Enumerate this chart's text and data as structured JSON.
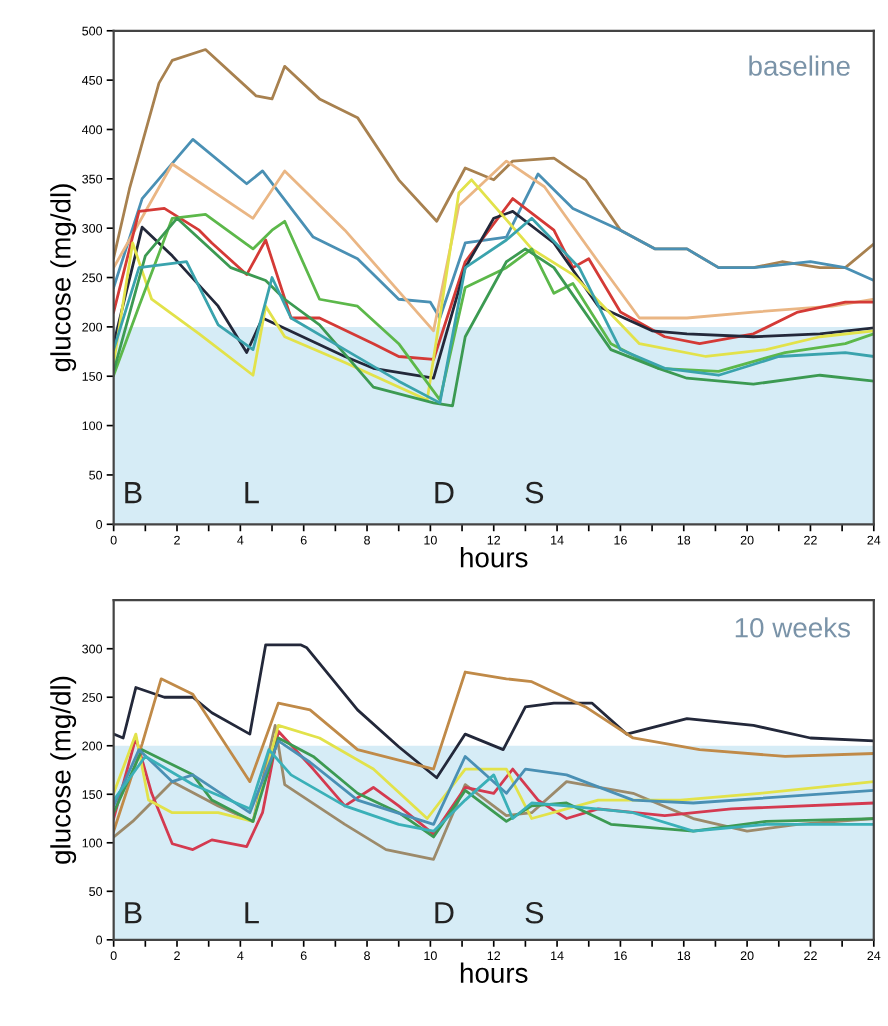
{
  "chart_data": [
    {
      "type": "line",
      "title": "baseline",
      "xlabel": "hours",
      "ylabel": "glucose (mg/dl)",
      "xlim": [
        0,
        24
      ],
      "ylim": [
        0,
        500
      ],
      "xticks": [
        0,
        {
          "value": 1,
          "label": null
        },
        2,
        {
          "value": 3,
          "label": null
        },
        4,
        {
          "value": 5,
          "label": null
        },
        6,
        {
          "value": 7,
          "label": null
        },
        8,
        {
          "value": 9,
          "label": null
        },
        10,
        {
          "value": 11,
          "label": null
        },
        12,
        {
          "value": 13,
          "label": null
        },
        14,
        {
          "value": 15,
          "label": null
        },
        16,
        {
          "value": 17,
          "label": null
        },
        18,
        {
          "value": 19,
          "label": null
        },
        20,
        {
          "value": 21,
          "label": null
        },
        22,
        {
          "value": 23,
          "label": null
        },
        24
      ],
      "yticks": [
        0,
        50,
        100,
        150,
        200,
        250,
        300,
        350,
        400,
        450,
        500
      ],
      "grid": false,
      "legend": false,
      "marker": "none",
      "line_style": "solid",
      "bands": [
        {
          "axis": "y",
          "from": 0,
          "to": 200,
          "color": "#d6ecf6"
        }
      ],
      "annotations": [
        "B",
        "L",
        "D",
        "S"
      ],
      "series": [
        {
          "color": "#a8814f",
          "x": [
            0,
            0.5,
            1.43,
            1.85,
            2.9,
            4.5,
            5.0,
            5.4,
            6.5,
            7.7,
            9.0,
            10.2,
            11.1,
            12.0,
            12.6,
            13.9,
            14.9,
            16,
            17.1,
            18.1,
            19.1,
            20.2,
            21.1,
            22.3,
            23.1,
            24
          ],
          "values": [
            270,
            340,
            447,
            470,
            481,
            434,
            431,
            464,
            431,
            412,
            349,
            307,
            361,
            349,
            368,
            371,
            349,
            298,
            279,
            279,
            260,
            260,
            266,
            260,
            260,
            284
          ]
        },
        {
          "color": "#4a90b4",
          "x": [
            0,
            0.9,
            2.5,
            4.2,
            4.7,
            6.3,
            7.7,
            9,
            10,
            10.3,
            11.1,
            12.4,
            13.4,
            14.5,
            16,
            17.1,
            18.1,
            19.1,
            20.2,
            22,
            23.1,
            24
          ],
          "values": [
            240,
            330,
            390,
            345,
            358,
            291,
            269,
            228,
            225,
            209,
            285,
            291,
            355,
            320,
            298,
            279,
            279,
            260,
            260,
            266,
            260,
            247
          ]
        },
        {
          "color": "#eab684",
          "x": [
            0,
            1.85,
            4.4,
            5.4,
            7.3,
            10.1,
            10.9,
            12.4,
            13.6,
            15.3,
            16.6,
            18.1,
            20.2,
            22.7,
            24
          ],
          "values": [
            260,
            365,
            310,
            358,
            298,
            196,
            323,
            368,
            342,
            266,
            209,
            209,
            215,
            221,
            228
          ]
        },
        {
          "color": "#d43a36",
          "x": [
            0,
            0.8,
            1.6,
            2.7,
            3.1,
            4.2,
            4.8,
            5.6,
            6.5,
            8.2,
            9,
            10.1,
            11.1,
            12.6,
            13.9,
            14.5,
            15,
            16,
            17.4,
            18.5,
            20.2,
            21.6,
            23.1,
            24
          ],
          "values": [
            215,
            317,
            320,
            298,
            285,
            253,
            288,
            209,
            209,
            183,
            170,
            167,
            266,
            330,
            298,
            260,
            269,
            215,
            190,
            183,
            193,
            215,
            225,
            225
          ]
        },
        {
          "color": "#23283a",
          "x": [
            0,
            0.9,
            1.85,
            3.3,
            4.2,
            4.7,
            7.3,
            8.2,
            10.1,
            11.1,
            12,
            12.6,
            13.9,
            15.3,
            17,
            18.1,
            20.2,
            22.3,
            24
          ],
          "values": [
            183,
            301,
            272,
            221,
            174,
            209,
            170,
            158,
            148,
            260,
            310,
            317,
            285,
            221,
            196,
            193,
            190,
            193,
            199
          ]
        },
        {
          "color": "#e2e24a",
          "x": [
            0,
            0.6,
            1.2,
            2.7,
            4.4,
            4.8,
            5.4,
            7.3,
            9.9,
            10.9,
            11.3,
            13.2,
            14.5,
            16.6,
            18.7,
            20.6,
            22.3,
            24
          ],
          "values": [
            164,
            285,
            228,
            193,
            151,
            221,
            190,
            164,
            126,
            336,
            349,
            279,
            253,
            183,
            170,
            177,
            190,
            196
          ]
        },
        {
          "color": "#5cb84a",
          "x": [
            0,
            0.8,
            1.85,
            2.9,
            4.4,
            5.0,
            5.4,
            6.5,
            7.7,
            9,
            10.3,
            11.1,
            12.4,
            13.2,
            13.9,
            14.5,
            15.7,
            17.2,
            19.1,
            21.2,
            23.1,
            24
          ],
          "values": [
            151,
            221,
            310,
            314,
            279,
            298,
            307,
            228,
            221,
            183,
            126,
            240,
            260,
            279,
            234,
            244,
            183,
            158,
            155,
            174,
            183,
            193
          ]
        },
        {
          "color": "#3c9a52",
          "x": [
            0,
            1,
            2,
            3.7,
            4.8,
            5.4,
            6.5,
            8.2,
            10.1,
            10.7,
            11.1,
            12.4,
            13,
            13.9,
            15.7,
            17.2,
            18.1,
            20.2,
            22.3,
            24
          ],
          "values": [
            155,
            272,
            310,
            260,
            247,
            228,
            202,
            139,
            123,
            120,
            190,
            266,
            279,
            260,
            177,
            158,
            148,
            142,
            151,
            145
          ]
        },
        {
          "color": "#3aa3ad",
          "x": [
            0,
            0.8,
            2.3,
            3.3,
            4.4,
            5,
            5.6,
            7.3,
            9,
            10.3,
            11.1,
            12.4,
            13.2,
            14.7,
            16,
            17.4,
            19.1,
            21,
            23.1,
            24
          ],
          "values": [
            177,
            260,
            266,
            202,
            177,
            250,
            209,
            177,
            145,
            123,
            260,
            288,
            310,
            260,
            177,
            158,
            151,
            170,
            174,
            170
          ]
        }
      ]
    },
    {
      "type": "line",
      "title": "10 weeks",
      "xlabel": "hours",
      "ylabel": "glucose (mg/dl)",
      "xlim": [
        0,
        24
      ],
      "ylim": [
        0,
        350
      ],
      "xticks": [
        0,
        {
          "value": 1,
          "label": null
        },
        2,
        {
          "value": 3,
          "label": null
        },
        4,
        {
          "value": 5,
          "label": null
        },
        6,
        {
          "value": 7,
          "label": null
        },
        8,
        {
          "value": 9,
          "label": null
        },
        10,
        {
          "value": 11,
          "label": null
        },
        12,
        {
          "value": 13,
          "label": null
        },
        14,
        {
          "value": 15,
          "label": null
        },
        16,
        {
          "value": 17,
          "label": null
        },
        18,
        {
          "value": 19,
          "label": null
        },
        20,
        {
          "value": 21,
          "label": null
        },
        22,
        {
          "value": 23,
          "label": null
        },
        24
      ],
      "yticks": [
        0,
        50,
        100,
        150,
        200,
        250,
        300
      ],
      "grid": false,
      "legend": false,
      "marker": "none",
      "line_style": "solid",
      "bands": [
        {
          "axis": "y",
          "from": 0,
          "to": 200,
          "color": "#d6ecf6"
        }
      ],
      "annotations": [
        "B",
        "L",
        "D",
        "S"
      ],
      "series": [
        {
          "color": "#23283a",
          "x": [
            0,
            0.3,
            0.7,
            1.6,
            2.5,
            3.1,
            4.3,
            4.8,
            5.9,
            6.1,
            7.7,
            9,
            10.2,
            11.1,
            12.3,
            13,
            13.9,
            15.1,
            16.2,
            18.1,
            20.2,
            22,
            24
          ],
          "values": [
            212,
            208,
            260,
            250,
            250,
            234,
            212,
            304,
            304,
            301,
            237,
            199,
            167,
            212,
            196,
            240,
            244,
            244,
            212,
            228,
            221,
            208,
            205
          ]
        },
        {
          "color": "#c08a48",
          "x": [
            0,
            0.9,
            1.5,
            2.5,
            4.3,
            5.2,
            6.2,
            7.7,
            10.1,
            11.1,
            12.4,
            13.2,
            14.9,
            16.4,
            18.5,
            21.2,
            24
          ],
          "values": [
            112,
            202,
            269,
            253,
            163,
            244,
            237,
            196,
            176,
            276,
            269,
            266,
            240,
            208,
            196,
            189,
            192
          ]
        },
        {
          "color": "#9c8a6a",
          "x": [
            0,
            0.6,
            1.85,
            3.3,
            4.4,
            5.1,
            5.4,
            7.3,
            8.6,
            10.1,
            11.1,
            12.4,
            13.2,
            14.3,
            16.4,
            18.3,
            20,
            21.6,
            24
          ],
          "values": [
            106,
            122,
            163,
            138,
            122,
            221,
            160,
            119,
            93,
            83,
            160,
            128,
            131,
            163,
            151,
            125,
            112,
            119,
            125
          ]
        },
        {
          "color": "#d43a50",
          "x": [
            0,
            0.7,
            1.2,
            1.85,
            2.5,
            3.1,
            4.2,
            4.7,
            5.2,
            6.3,
            7.3,
            8.2,
            9,
            10.1,
            11.1,
            12,
            12.6,
            13.4,
            14.3,
            15.3,
            17.4,
            19.5,
            24
          ],
          "values": [
            125,
            208,
            151,
            99,
            93,
            103,
            96,
            131,
            215,
            176,
            138,
            157,
            138,
            109,
            157,
            151,
            176,
            144,
            125,
            135,
            128,
            135,
            141
          ]
        },
        {
          "color": "#e2e24a",
          "x": [
            0,
            0.7,
            1.1,
            1.85,
            3.3,
            4.4,
            5.2,
            6.5,
            8.2,
            9.9,
            11.1,
            12.4,
            13.2,
            15.3,
            17.9,
            20.4,
            24
          ],
          "values": [
            151,
            212,
            144,
            131,
            131,
            122,
            221,
            208,
            176,
            125,
            176,
            176,
            125,
            144,
            144,
            151,
            163
          ]
        },
        {
          "color": "#3c9a52",
          "x": [
            0,
            0.9,
            2.5,
            3.1,
            4.4,
            5.2,
            6.3,
            7.7,
            9,
            10.1,
            11.1,
            12.4,
            13.2,
            14.3,
            15.7,
            18.3,
            20.6,
            24
          ],
          "values": [
            131,
            196,
            170,
            144,
            122,
            208,
            189,
            151,
            131,
            106,
            154,
            122,
            138,
            141,
            119,
            112,
            122,
            125
          ]
        },
        {
          "color": "#4a90b4",
          "x": [
            0,
            0.8,
            1.85,
            2.5,
            4.3,
            5.2,
            6.2,
            7.7,
            10.1,
            11.1,
            12.4,
            13,
            14.3,
            16.4,
            18.3,
            24
          ],
          "values": [
            138,
            196,
            163,
            170,
            131,
            205,
            183,
            144,
            119,
            189,
            151,
            176,
            170,
            144,
            141,
            154
          ]
        },
        {
          "color": "#3ab0b8",
          "x": [
            0,
            1,
            2.5,
            4.3,
            4.9,
            5.6,
            7.3,
            9,
            10.1,
            11.1,
            12,
            12.6,
            13.2,
            14.3,
            16.4,
            18.3,
            20.6,
            24
          ],
          "values": [
            144,
            189,
            160,
            135,
            196,
            170,
            138,
            119,
            112,
            144,
            170,
            125,
            141,
            138,
            131,
            112,
            119,
            119
          ]
        }
      ]
    }
  ]
}
